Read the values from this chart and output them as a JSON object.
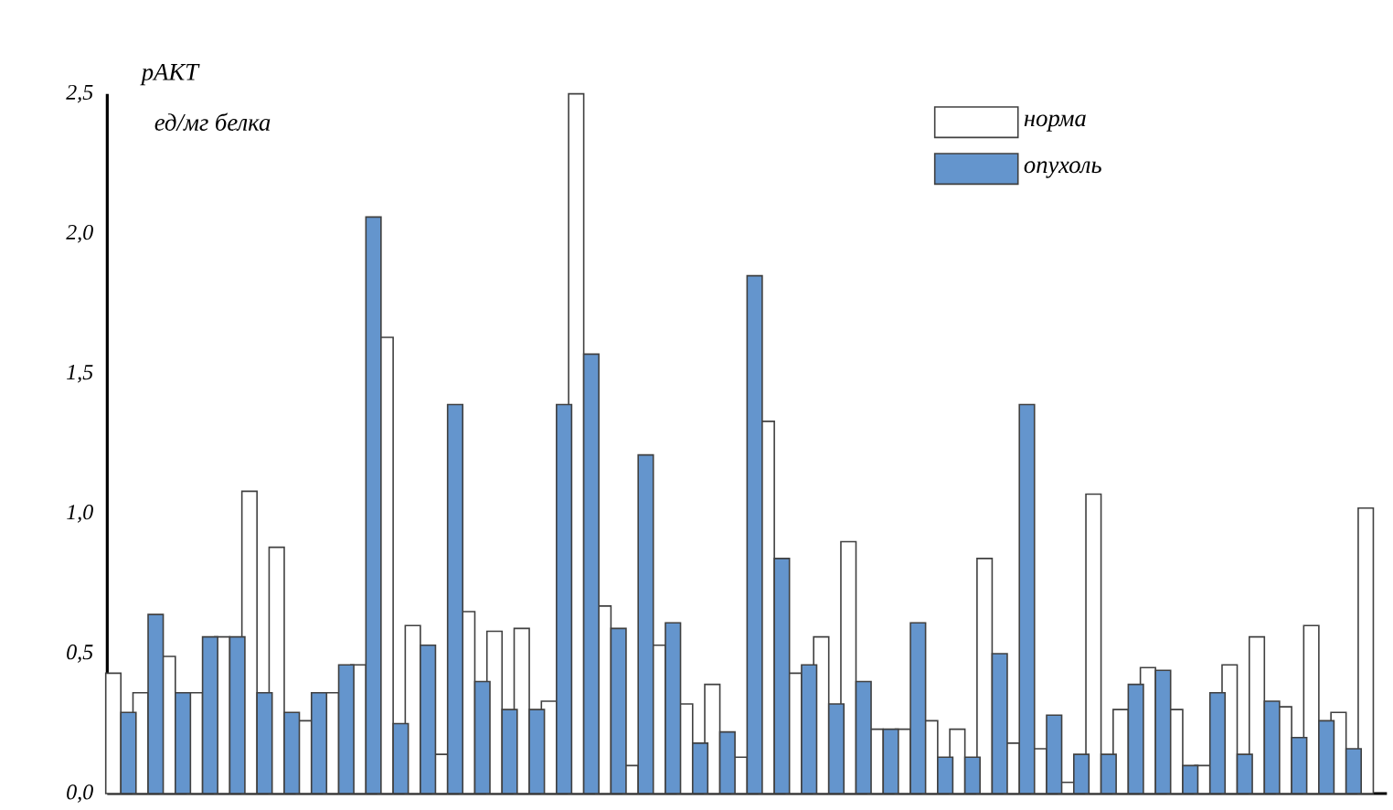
{
  "chart_data": {
    "type": "bar",
    "ylabel": "pAKT",
    "annotations": [
      "ед/мг белка"
    ],
    "categories": [
      null,
      null,
      null,
      null,
      null,
      null,
      null,
      null,
      null,
      null,
      null,
      null,
      null,
      null,
      null,
      null,
      null,
      null,
      null,
      null,
      null,
      null,
      null,
      null,
      null,
      null,
      null,
      null,
      null,
      null,
      null,
      null,
      null,
      null,
      null,
      null,
      null,
      null,
      null,
      null,
      null,
      null,
      null,
      null,
      null,
      null,
      null
    ],
    "series": [
      {
        "name": "норма",
        "color": "#ffffff",
        "values": [
          0.43,
          0.36,
          0.49,
          0.36,
          0.56,
          1.08,
          0.88,
          0.26,
          0.36,
          0.46,
          1.63,
          0.6,
          0.14,
          0.65,
          0.58,
          0.59,
          0.33,
          2.5,
          0.67,
          0.1,
          0.53,
          0.32,
          0.39,
          0.13,
          1.33,
          0.43,
          0.56,
          0.9,
          0.23,
          0.23,
          0.26,
          0.23,
          0.84,
          0.18,
          0.16,
          0.04,
          1.07,
          0.3,
          0.45,
          0.3,
          0.1,
          0.46,
          0.56,
          0.31,
          0.6,
          0.29,
          1.02
        ]
      },
      {
        "name": "опухоль",
        "color": "#6495cd",
        "values": [
          0.29,
          0.64,
          0.36,
          0.56,
          0.56,
          0.36,
          0.29,
          0.36,
          0.46,
          2.06,
          0.25,
          0.53,
          1.39,
          0.4,
          0.3,
          0.3,
          1.39,
          1.57,
          0.59,
          1.21,
          0.61,
          0.18,
          0.22,
          1.85,
          0.84,
          0.46,
          0.32,
          0.4,
          0.23,
          0.61,
          0.13,
          0.13,
          0.5,
          1.39,
          0.28,
          0.14,
          0.14,
          0.39,
          0.44,
          0.1,
          0.36,
          0.14,
          0.33,
          0.2,
          0.26,
          0.16,
          null
        ]
      }
    ],
    "ylim": [
      0,
      2.5
    ],
    "yticks": [
      {
        "value": 0,
        "label": "0,0"
      },
      {
        "value": 0.5,
        "label": "0,5"
      },
      {
        "value": 1,
        "label": "1,0"
      },
      {
        "value": 1.5,
        "label": "1,5"
      },
      {
        "value": 2,
        "label": "2,0"
      },
      {
        "value": 2.5,
        "label": "2,5"
      }
    ],
    "legend": "top right",
    "tick_labels": "y"
  }
}
